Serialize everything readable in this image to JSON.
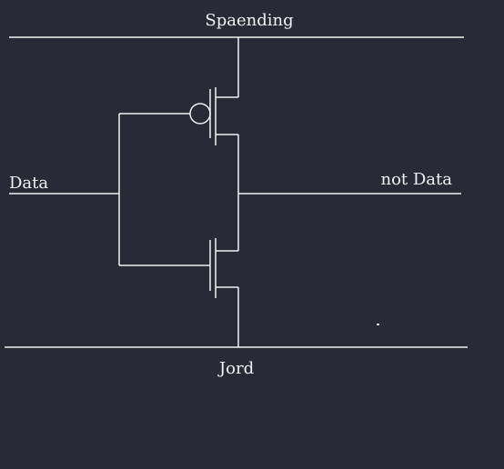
{
  "diagram": {
    "labels": {
      "supply": "Spaending",
      "ground": "Jord",
      "input": "Data",
      "output": "not Data"
    }
  },
  "colors": {
    "background": "#282a36",
    "line": "#f2f2f2"
  }
}
